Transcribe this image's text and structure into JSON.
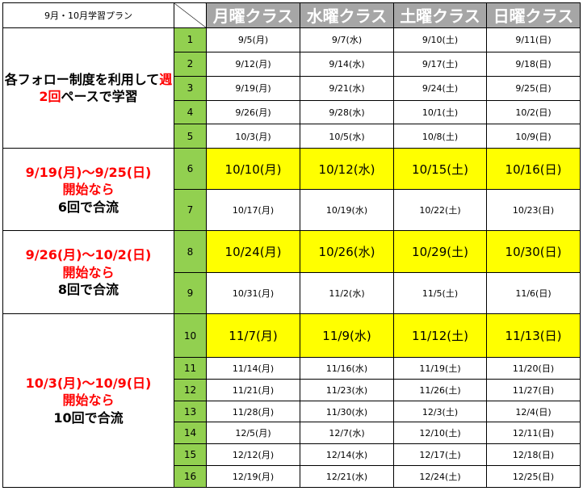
{
  "header": {
    "title": "9月・10月学習プラン",
    "classes": [
      "月曜クラス",
      "水曜クラス",
      "土曜クラス",
      "日曜クラス"
    ]
  },
  "groups": [
    {
      "text_before": "各フォロー制度を利用して",
      "text_highlight": "週2回",
      "text_after": "ペースで学習"
    },
    {
      "period": "9/19(月)～9/25(日)",
      "start": "開始なら",
      "merge": "6回で合流"
    },
    {
      "period": "9/26(月)～10/2(日)",
      "start": "開始なら",
      "merge": "8回で合流"
    },
    {
      "period": "10/3(月)～10/9(日)",
      "start": "開始なら",
      "merge": "10回で合流"
    }
  ],
  "rows": [
    {
      "no": "1",
      "dates": [
        "9/5(月)",
        "9/7(水)",
        "9/10(土)",
        "9/11(日)"
      ]
    },
    {
      "no": "2",
      "dates": [
        "9/12(月)",
        "9/14(水)",
        "9/17(土)",
        "9/18(日)"
      ]
    },
    {
      "no": "3",
      "dates": [
        "9/19(月)",
        "9/21(水)",
        "9/24(土)",
        "9/25(日)"
      ]
    },
    {
      "no": "4",
      "dates": [
        "9/26(月)",
        "9/28(水)",
        "10/1(土)",
        "10/2(日)"
      ]
    },
    {
      "no": "5",
      "dates": [
        "10/3(月)",
        "10/5(水)",
        "10/8(土)",
        "10/9(日)"
      ]
    },
    {
      "no": "6",
      "dates": [
        "10/10(月)",
        "10/12(水)",
        "10/15(土)",
        "10/16(日)"
      ]
    },
    {
      "no": "7",
      "dates": [
        "10/17(月)",
        "10/19(水)",
        "10/22(土)",
        "10/23(日)"
      ]
    },
    {
      "no": "8",
      "dates": [
        "10/24(月)",
        "10/26(水)",
        "10/29(土)",
        "10/30(日)"
      ]
    },
    {
      "no": "9",
      "dates": [
        "10/31(月)",
        "11/2(水)",
        "11/5(土)",
        "11/6(日)"
      ]
    },
    {
      "no": "10",
      "dates": [
        "11/7(月)",
        "11/9(水)",
        "11/12(土)",
        "11/13(日)"
      ]
    },
    {
      "no": "11",
      "dates": [
        "11/14(月)",
        "11/16(水)",
        "11/19(土)",
        "11/20(日)"
      ]
    },
    {
      "no": "12",
      "dates": [
        "11/21(月)",
        "11/23(水)",
        "11/26(土)",
        "11/27(日)"
      ]
    },
    {
      "no": "13",
      "dates": [
        "11/28(月)",
        "11/30(水)",
        "12/3(土)",
        "12/4(日)"
      ]
    },
    {
      "no": "14",
      "dates": [
        "12/5(月)",
        "12/7(水)",
        "12/10(土)",
        "12/11(日)"
      ]
    },
    {
      "no": "15",
      "dates": [
        "12/12(月)",
        "12/14(水)",
        "12/17(土)",
        "12/18(日)"
      ]
    },
    {
      "no": "16",
      "dates": [
        "12/19(月)",
        "12/21(水)",
        "12/24(土)",
        "12/25(日)"
      ]
    }
  ],
  "colors": {
    "header_bg": "#a6a6a6",
    "number_bg": "#92d050",
    "highlight_bg": "#ffff00",
    "accent_red": "#ff0000"
  }
}
